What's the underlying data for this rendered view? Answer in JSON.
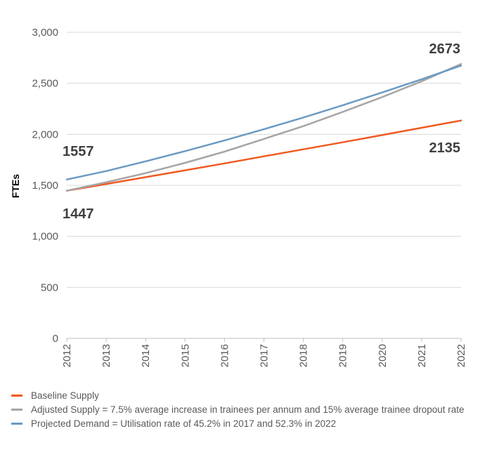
{
  "chart_data": {
    "type": "line",
    "x": [
      "2012",
      "2013",
      "2014",
      "2015",
      "2016",
      "2017",
      "2018",
      "2019",
      "2020",
      "2021",
      "2022"
    ],
    "ylabel": "FTEs",
    "xlabel": "",
    "ylim": [
      0,
      3000
    ],
    "yticks": [
      "0",
      "500",
      "1,000",
      "1,500",
      "2,000",
      "2,500",
      "3,000"
    ],
    "ytick_values": [
      0,
      500,
      1000,
      1500,
      2000,
      2500,
      3000
    ],
    "grid": true,
    "legend_position": "bottom",
    "series": [
      {
        "name": "Baseline Supply",
        "color": "#f05a22",
        "values": [
          1447,
          1513,
          1580,
          1647,
          1715,
          1784,
          1853,
          1922,
          1993,
          2064,
          2135
        ]
      },
      {
        "name": "Adjusted Supply = 7.5% average increase in trainees per annum and 15% average trainee dropout rate",
        "color": "#a6a6a6",
        "values": [
          1447,
          1530,
          1620,
          1720,
          1830,
          1955,
          2080,
          2220,
          2365,
          2520,
          2690
        ]
      },
      {
        "name": "Projected Demand = Utilisation rate of 45.2% in 2017 and 52.3% in 2022",
        "color": "#6b9ac4",
        "values": [
          1557,
          1640,
          1735,
          1835,
          1940,
          2050,
          2165,
          2285,
          2410,
          2540,
          2673
        ]
      }
    ],
    "annotations": [
      "1557",
      "1447",
      "2673",
      "2135"
    ]
  }
}
